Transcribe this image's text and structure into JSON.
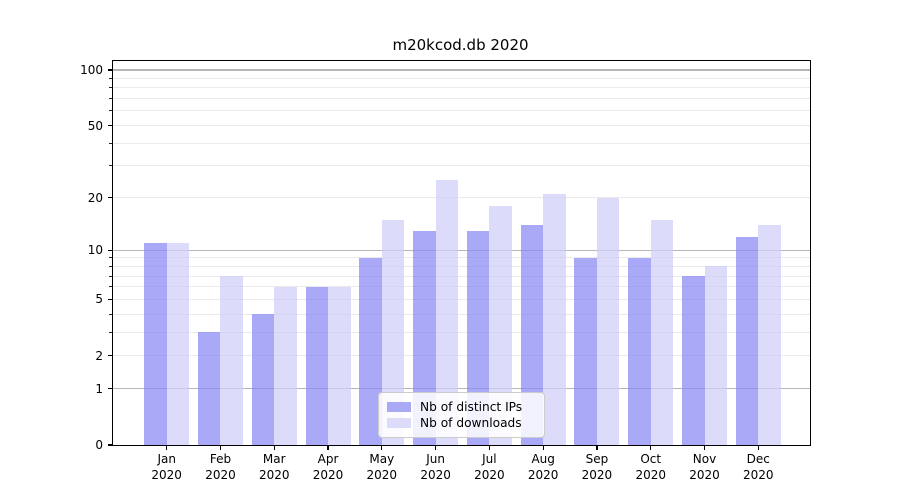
{
  "chart_data": {
    "type": "bar",
    "title": "m20kcod.db 2020",
    "categories": [
      "Jan",
      "Feb",
      "Mar",
      "Apr",
      "May",
      "Jun",
      "Jul",
      "Aug",
      "Sep",
      "Oct",
      "Nov",
      "Dec"
    ],
    "x_tick_year": "2020",
    "series": [
      {
        "name": "Nb of distinct IPs",
        "values": [
          11,
          3,
          4,
          6,
          9,
          13,
          13,
          14,
          9,
          9,
          7,
          12
        ],
        "fill": "rgba(136,136,244,0.72)",
        "swatch": "#a9a9f6"
      },
      {
        "name": "Nb of downloads",
        "values": [
          11,
          7,
          6,
          6,
          15,
          25,
          18,
          21,
          20,
          15,
          8,
          14
        ],
        "fill": "rgba(206,206,248,0.72)",
        "swatch": "#dcdcfa"
      }
    ],
    "y_axis": {
      "scale": "log1p",
      "min": 0,
      "max": 100,
      "tick_values": [
        0,
        1,
        2,
        5,
        10,
        20,
        50,
        100
      ],
      "tick_labels": [
        "0",
        "1",
        "2",
        "5",
        "10",
        "20",
        "50",
        "100"
      ],
      "major_gridlines": [
        1,
        10,
        100
      ],
      "minor_gridlines": [
        2,
        3,
        4,
        5,
        6,
        7,
        8,
        9,
        20,
        30,
        40,
        50,
        60,
        70,
        80,
        90
      ]
    },
    "grid": true,
    "legend_position": "lower center",
    "colors": {
      "major_grid": "#b6b6b6",
      "minor_grid": "#eaeaea",
      "spine": "#000000",
      "text": "#000000",
      "background": "#ffffff"
    }
  }
}
